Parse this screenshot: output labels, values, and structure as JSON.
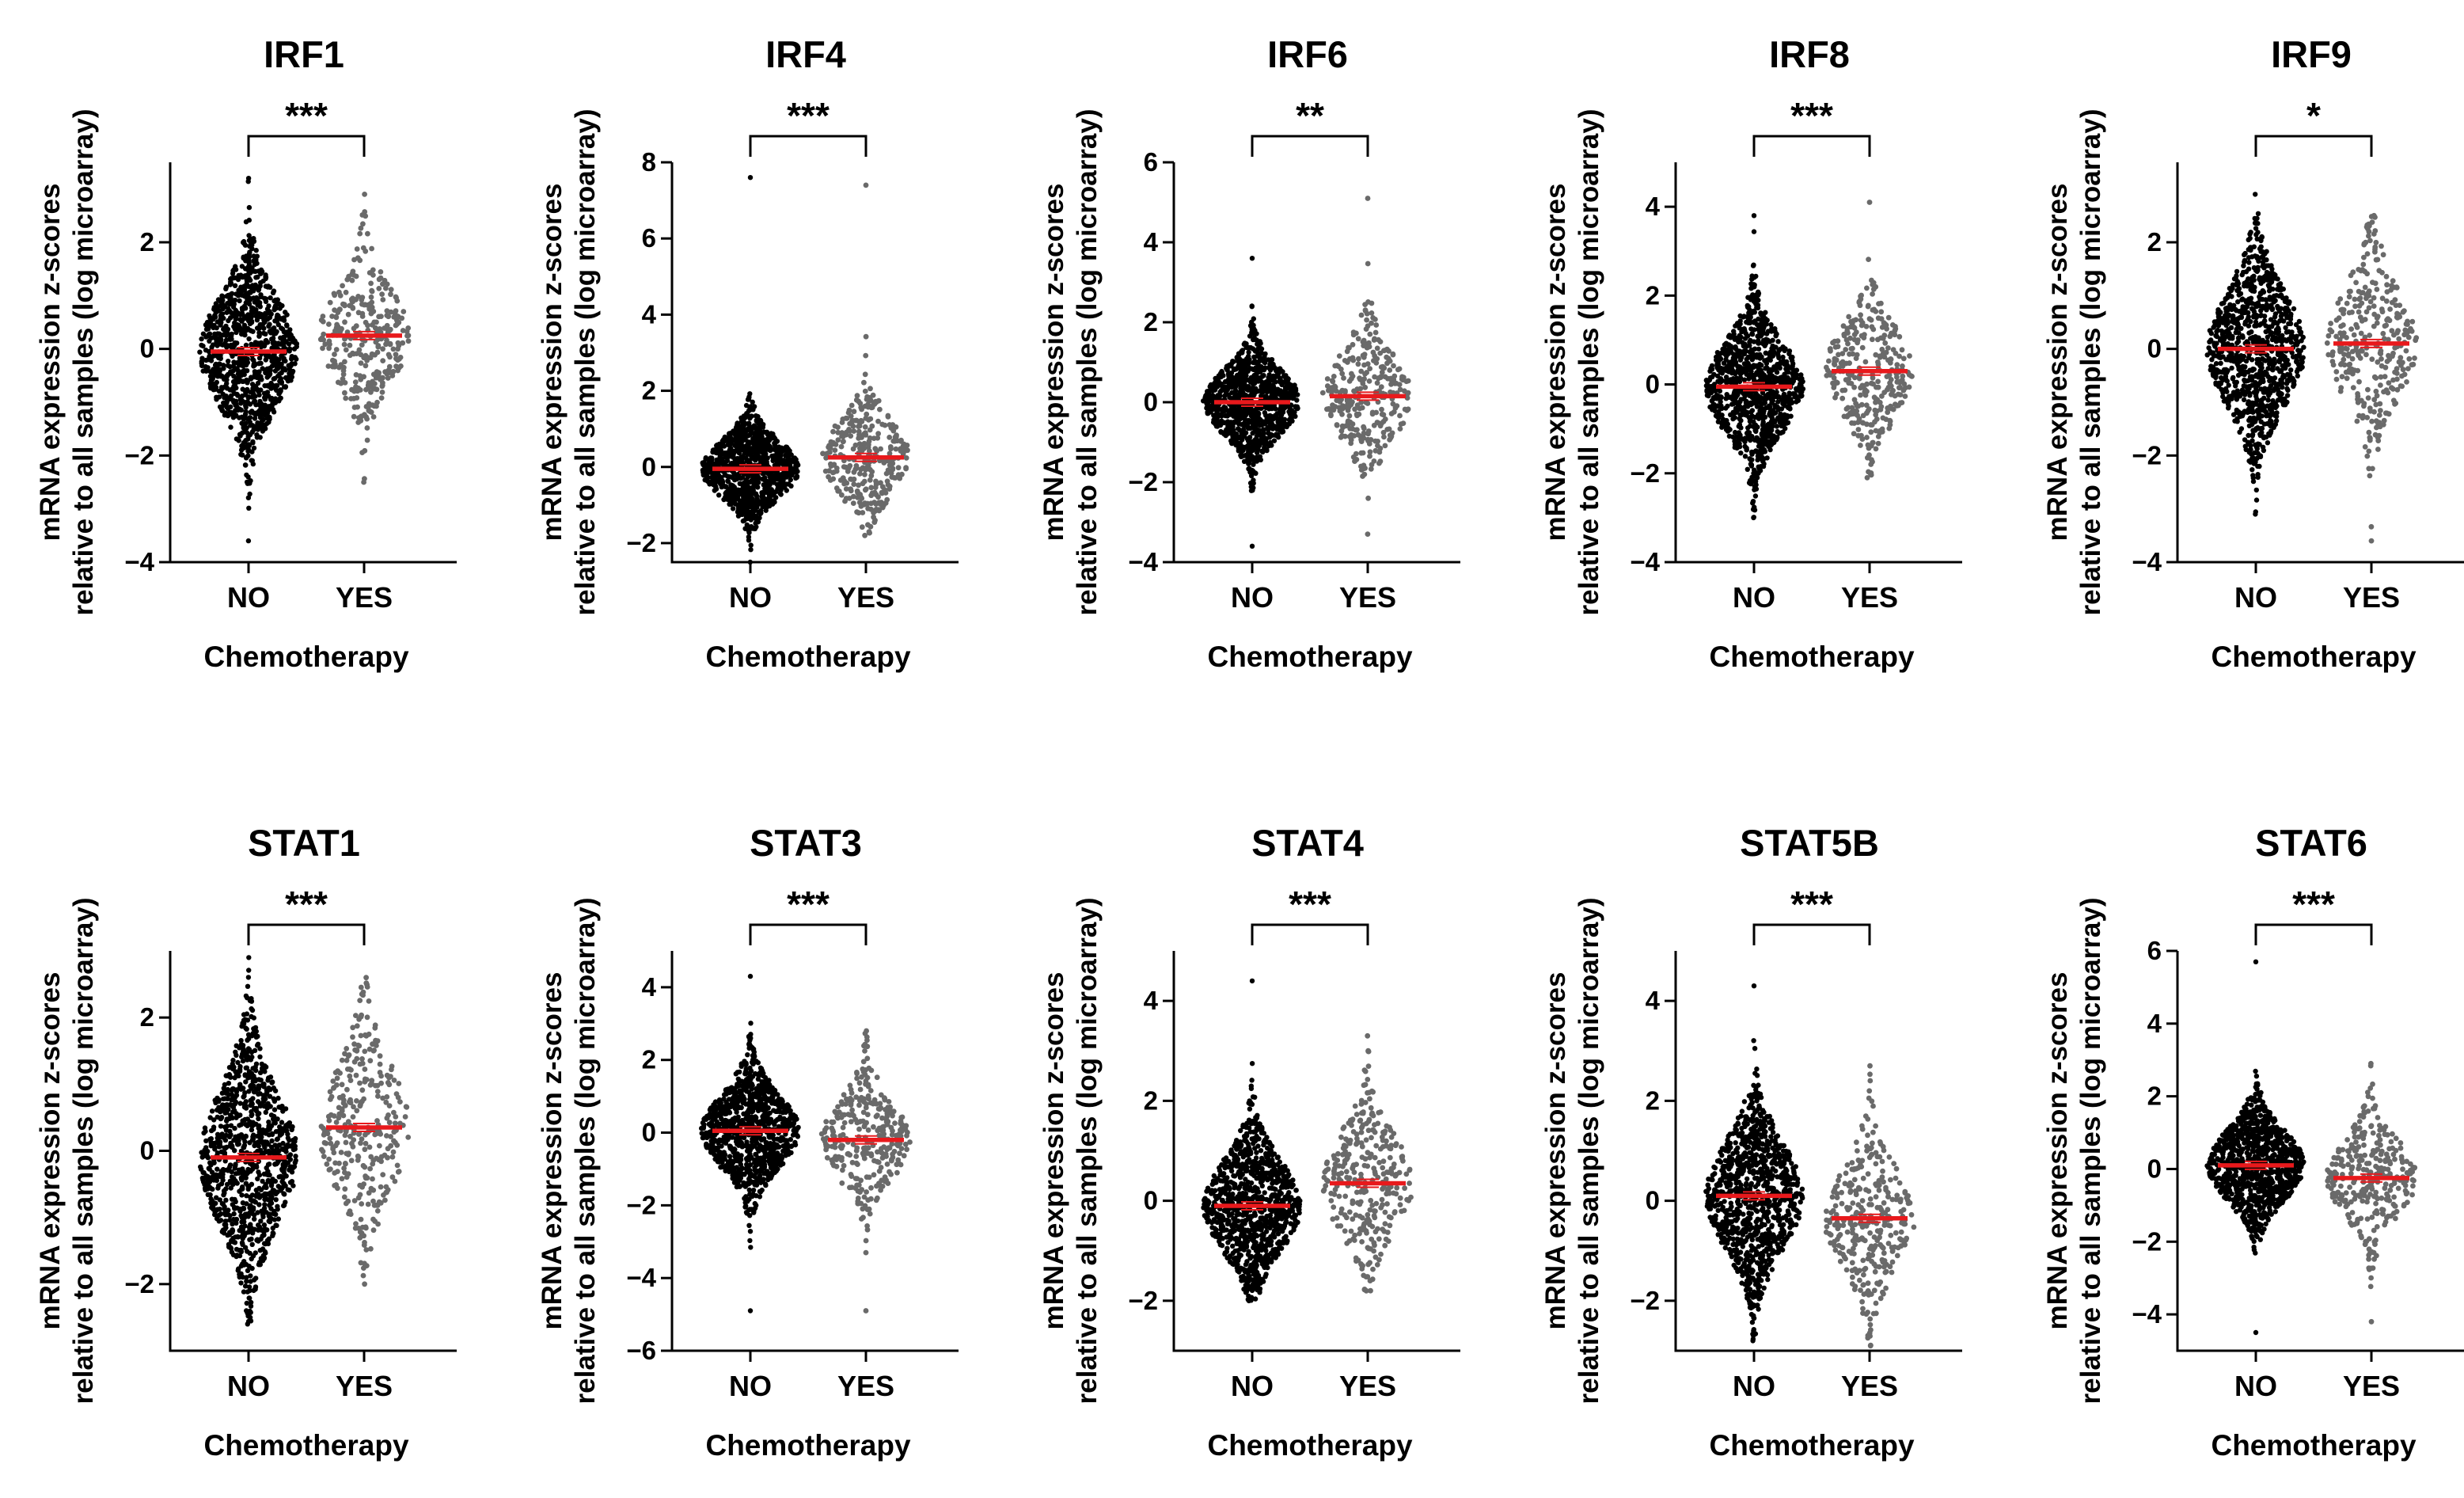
{
  "chart_data": [
    {
      "type": "scatter",
      "title": "IRF1",
      "significance": "***",
      "ylabel_line1": "mRNA expression z-scores",
      "ylabel_line2": "relative to all samples (log microarray)",
      "xlabel": "Chemotherapy",
      "categories": [
        "NO",
        "YES"
      ],
      "ylim": [
        -4,
        3.5
      ],
      "yticks": [
        -4,
        -2,
        0,
        2
      ],
      "groups": [
        {
          "name": "NO",
          "n": 1000,
          "mean": -0.05,
          "sd": 0.95,
          "min": -3.6,
          "max": 3.2,
          "color": "#000000"
        },
        {
          "name": "YES",
          "n": 320,
          "mean": 0.25,
          "sd": 0.85,
          "min": -2.5,
          "max": 2.9,
          "color": "#6a6a6a"
        }
      ],
      "mean_color": "#e8191c"
    },
    {
      "type": "scatter",
      "title": "IRF4",
      "significance": "***",
      "ylabel_line1": "mRNA expression z-scores",
      "ylabel_line2": "relative to all samples (log microarray)",
      "xlabel": "Chemotherapy",
      "categories": [
        "NO",
        "YES"
      ],
      "ylim": [
        -2.5,
        8
      ],
      "yticks": [
        -2,
        0,
        2,
        4,
        6,
        8
      ],
      "groups": [
        {
          "name": "NO",
          "n": 1000,
          "mean": -0.05,
          "sd": 0.7,
          "min": -2.5,
          "max": 7.6,
          "color": "#000000"
        },
        {
          "name": "YES",
          "n": 320,
          "mean": 0.25,
          "sd": 0.9,
          "min": -1.8,
          "max": 7.4,
          "color": "#6a6a6a"
        }
      ],
      "mean_color": "#e8191c"
    },
    {
      "type": "scatter",
      "title": "IRF6",
      "significance": "**",
      "ylabel_line1": "mRNA expression z-scores",
      "ylabel_line2": "relative to all samples (log microarray)",
      "xlabel": "Chemotherapy",
      "categories": [
        "NO",
        "YES"
      ],
      "ylim": [
        -4,
        6
      ],
      "yticks": [
        -4,
        -2,
        0,
        2,
        4,
        6
      ],
      "groups": [
        {
          "name": "NO",
          "n": 1000,
          "mean": 0.0,
          "sd": 0.75,
          "min": -3.6,
          "max": 3.6,
          "color": "#000000"
        },
        {
          "name": "YES",
          "n": 320,
          "mean": 0.15,
          "sd": 1.0,
          "min": -3.3,
          "max": 5.1,
          "color": "#6a6a6a"
        }
      ],
      "mean_color": "#e8191c"
    },
    {
      "type": "scatter",
      "title": "IRF8",
      "significance": "***",
      "ylabel_line1": "mRNA expression z-scores",
      "ylabel_line2": "relative to all samples (log microarray)",
      "xlabel": "Chemotherapy",
      "categories": [
        "NO",
        "YES"
      ],
      "ylim": [
        -4,
        5
      ],
      "yticks": [
        -4,
        -2,
        0,
        2,
        4
      ],
      "groups": [
        {
          "name": "NO",
          "n": 1000,
          "mean": -0.05,
          "sd": 0.95,
          "min": -3.0,
          "max": 3.8,
          "color": "#000000"
        },
        {
          "name": "YES",
          "n": 320,
          "mean": 0.3,
          "sd": 0.95,
          "min": -2.1,
          "max": 4.1,
          "color": "#6a6a6a"
        }
      ],
      "mean_color": "#e8191c"
    },
    {
      "type": "scatter",
      "title": "IRF9",
      "significance": "*",
      "ylabel_line1": "mRNA expression z-scores",
      "ylabel_line2": "relative to all samples (log microarray)",
      "xlabel": "Chemotherapy",
      "categories": [
        "NO",
        "YES"
      ],
      "ylim": [
        -4,
        3.5
      ],
      "yticks": [
        -4,
        -2,
        0,
        2
      ],
      "groups": [
        {
          "name": "NO",
          "n": 1000,
          "mean": 0.0,
          "sd": 1.0,
          "min": -3.1,
          "max": 2.9,
          "color": "#000000"
        },
        {
          "name": "YES",
          "n": 320,
          "mean": 0.1,
          "sd": 1.0,
          "min": -3.6,
          "max": 2.5,
          "color": "#6a6a6a"
        }
      ],
      "mean_color": "#e8191c"
    },
    {
      "type": "scatter",
      "title": "STAT1",
      "significance": "***",
      "ylabel_line1": "mRNA expression z-scores",
      "ylabel_line2": "relative to all samples (log microarray)",
      "xlabel": "Chemotherapy",
      "categories": [
        "NO",
        "YES"
      ],
      "ylim": [
        -3,
        3
      ],
      "yticks": [
        -2,
        0,
        2
      ],
      "groups": [
        {
          "name": "NO",
          "n": 1000,
          "mean": -0.1,
          "sd": 0.95,
          "min": -2.6,
          "max": 2.9,
          "color": "#000000"
        },
        {
          "name": "YES",
          "n": 320,
          "mean": 0.35,
          "sd": 0.9,
          "min": -2.0,
          "max": 2.6,
          "color": "#6a6a6a"
        }
      ],
      "mean_color": "#e8191c"
    },
    {
      "type": "scatter",
      "title": "STAT3",
      "significance": "***",
      "ylabel_line1": "mRNA expression z-scores",
      "ylabel_line2": "relative to all samples (log microarray)",
      "xlabel": "Chemotherapy",
      "categories": [
        "NO",
        "YES"
      ],
      "ylim": [
        -6,
        5
      ],
      "yticks": [
        -6,
        -4,
        -2,
        0,
        2,
        4
      ],
      "groups": [
        {
          "name": "NO",
          "n": 1000,
          "mean": 0.05,
          "sd": 0.95,
          "min": -4.9,
          "max": 4.3,
          "color": "#000000"
        },
        {
          "name": "YES",
          "n": 320,
          "mean": -0.2,
          "sd": 1.0,
          "min": -4.9,
          "max": 2.8,
          "color": "#6a6a6a"
        }
      ],
      "mean_color": "#e8191c"
    },
    {
      "type": "scatter",
      "title": "STAT4",
      "significance": "***",
      "ylabel_line1": "mRNA expression z-scores",
      "ylabel_line2": "relative to all samples (log microarray)",
      "xlabel": "Chemotherapy",
      "categories": [
        "NO",
        "YES"
      ],
      "ylim": [
        -3,
        5
      ],
      "yticks": [
        -2,
        0,
        2,
        4
      ],
      "groups": [
        {
          "name": "NO",
          "n": 1000,
          "mean": -0.1,
          "sd": 0.85,
          "min": -2.0,
          "max": 4.4,
          "color": "#000000"
        },
        {
          "name": "YES",
          "n": 320,
          "mean": 0.35,
          "sd": 0.95,
          "min": -1.8,
          "max": 3.3,
          "color": "#6a6a6a"
        }
      ],
      "mean_color": "#e8191c"
    },
    {
      "type": "scatter",
      "title": "STAT5B",
      "significance": "***",
      "ylabel_line1": "mRNA expression z-scores",
      "ylabel_line2": "relative to all samples (log microarray)",
      "xlabel": "Chemotherapy",
      "categories": [
        "NO",
        "YES"
      ],
      "ylim": [
        -3,
        5
      ],
      "yticks": [
        -2,
        0,
        2,
        4
      ],
      "groups": [
        {
          "name": "NO",
          "n": 1000,
          "mean": 0.1,
          "sd": 1.0,
          "min": -2.8,
          "max": 4.3,
          "color": "#000000"
        },
        {
          "name": "YES",
          "n": 320,
          "mean": -0.35,
          "sd": 0.95,
          "min": -2.9,
          "max": 2.7,
          "color": "#6a6a6a"
        }
      ],
      "mean_color": "#e8191c"
    },
    {
      "type": "scatter",
      "title": "STAT6",
      "significance": "***",
      "ylabel_line1": "mRNA expression z-scores",
      "ylabel_line2": "relative to all samples (log microarray)",
      "xlabel": "Chemotherapy",
      "categories": [
        "NO",
        "YES"
      ],
      "ylim": [
        -5,
        6
      ],
      "yticks": [
        -4,
        -2,
        0,
        2,
        4,
        6
      ],
      "groups": [
        {
          "name": "NO",
          "n": 1000,
          "mean": 0.1,
          "sd": 0.9,
          "min": -4.5,
          "max": 5.7,
          "color": "#000000"
        },
        {
          "name": "YES",
          "n": 320,
          "mean": -0.25,
          "sd": 1.0,
          "min": -4.2,
          "max": 2.9,
          "color": "#6a6a6a"
        }
      ],
      "mean_color": "#e8191c"
    }
  ]
}
